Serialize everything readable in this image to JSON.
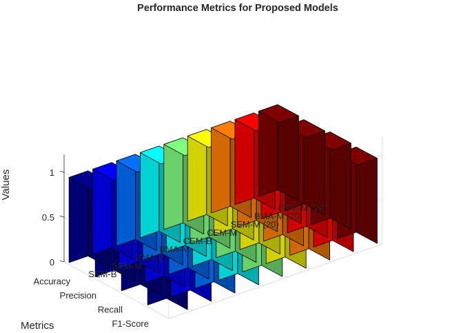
{
  "chart_data": {
    "type": "bar3d",
    "title": "Performance Metrics for Proposed Models",
    "xlabel": "Metrics",
    "ylabel": "",
    "zlabel": "Values",
    "zlim": [
      0,
      1
    ],
    "zticks": [
      "0",
      "0.5",
      "1"
    ],
    "grid": true,
    "metrics": [
      "Accuracy",
      "Precision",
      "Recall",
      "F1-Score"
    ],
    "models": [
      "SEM-B",
      "SEM-M",
      "BMA-B",
      "BMA-M",
      "CEM-B",
      "CEM-M",
      "SEM-M (20)",
      "BMA-M (20)",
      "CEM-M (20)"
    ],
    "colors": [
      "#00008f",
      "#0000ff",
      "#0070ff",
      "#00ffff",
      "#80ff80",
      "#ffff00",
      "#ff8000",
      "#ff0000",
      "#800000"
    ],
    "values": [
      [
        0.95,
        0.94,
        0.96,
        0.95
      ],
      [
        0.95,
        0.94,
        0.96,
        0.95
      ],
      [
        0.95,
        0.94,
        0.96,
        0.95
      ],
      [
        0.95,
        0.94,
        0.96,
        0.95
      ],
      [
        0.95,
        0.94,
        0.96,
        0.95
      ],
      [
        0.95,
        0.94,
        0.96,
        0.95
      ],
      [
        0.95,
        0.94,
        0.96,
        0.95
      ],
      [
        0.95,
        0.94,
        0.96,
        0.95
      ],
      [
        0.95,
        0.94,
        0.96,
        0.95
      ]
    ]
  }
}
